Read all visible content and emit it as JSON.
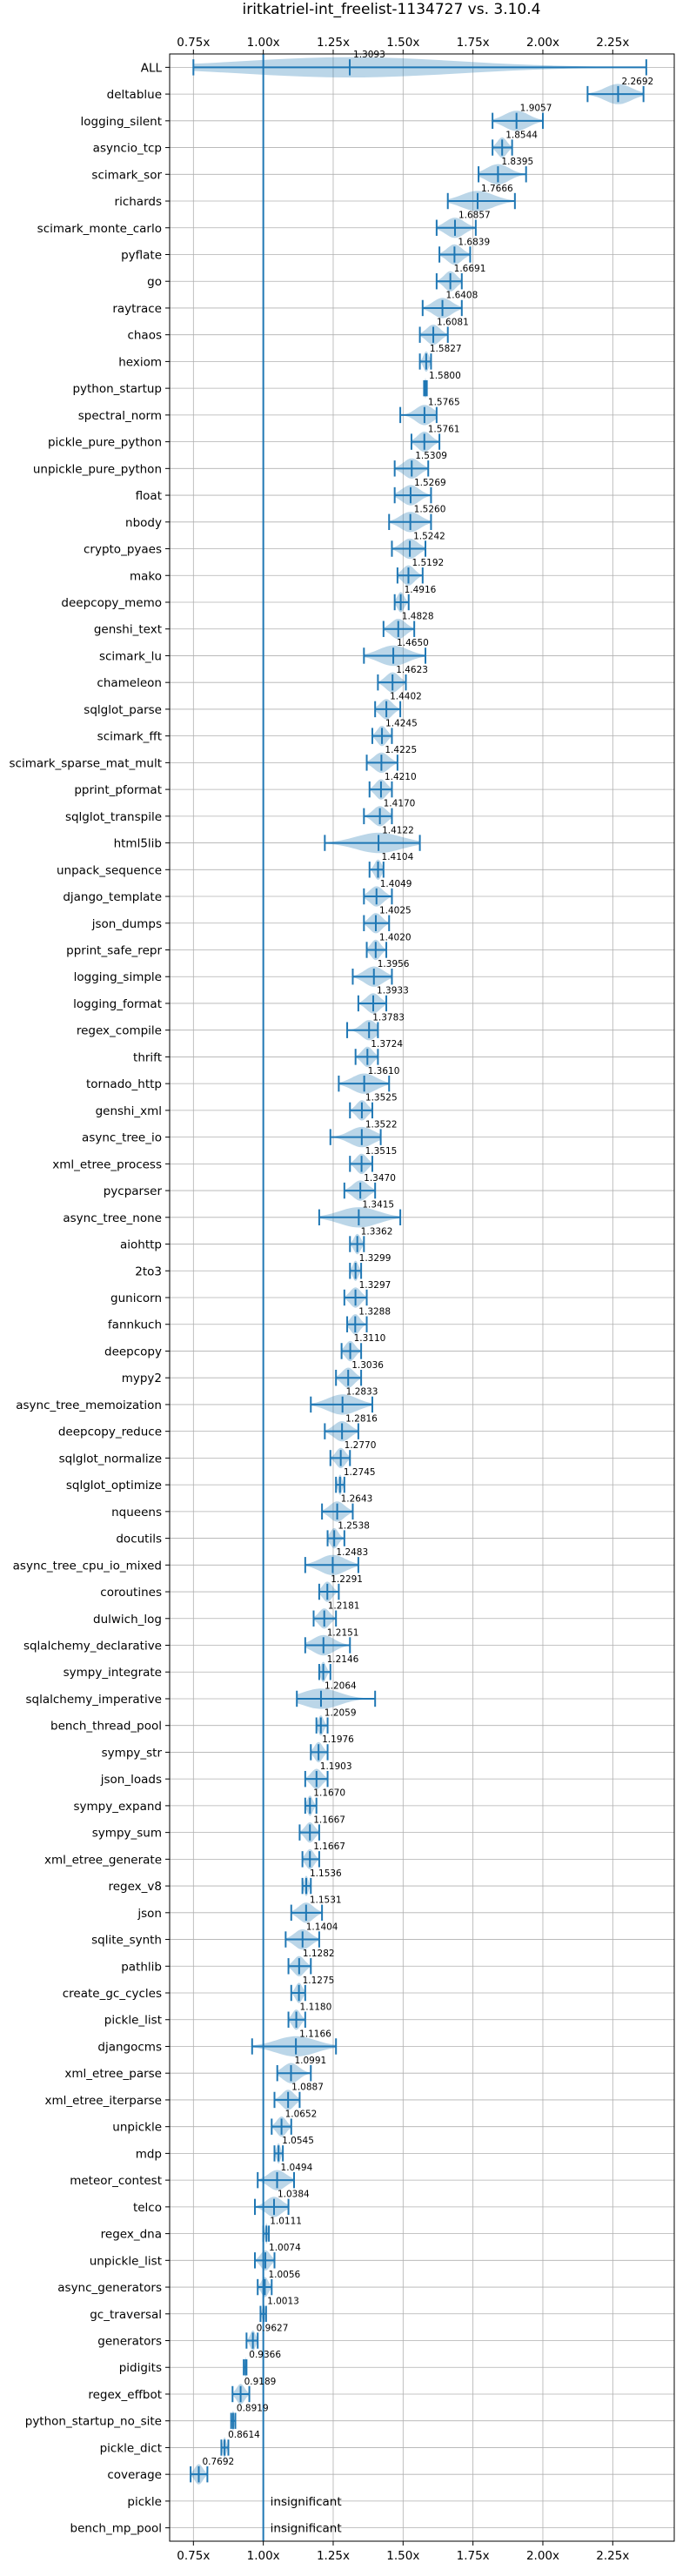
{
  "chart_data": {
    "type": "violin",
    "title": "iritkatriel-int_freelist-1134727 vs. 3.10.4",
    "xlabel": "",
    "ylabel": "",
    "xlim": [
      0.665,
      2.47
    ],
    "xticks": [
      {
        "value": 0.75,
        "label": "0.75x"
      },
      {
        "value": 1.0,
        "label": "1.00x"
      },
      {
        "value": 1.25,
        "label": "1.25x"
      },
      {
        "value": 1.5,
        "label": "1.50x"
      },
      {
        "value": 1.75,
        "label": "1.75x"
      },
      {
        "value": 2.0,
        "label": "2.00x"
      },
      {
        "value": 2.25,
        "label": "2.25x"
      }
    ],
    "reference_line": 1.0,
    "grid": true,
    "insignificant_label": "insignificant",
    "benchmarks": [
      {
        "name": "ALL",
        "label": "1.3093",
        "value": 1.3093,
        "min": 0.75,
        "max": 2.37
      },
      {
        "name": "deltablue",
        "label": "2.2692",
        "value": 2.2692,
        "min": 2.16,
        "max": 2.36
      },
      {
        "name": "logging_silent",
        "label": "1.9057",
        "value": 1.9057,
        "min": 1.82,
        "max": 2.0
      },
      {
        "name": "asyncio_tcp",
        "label": "1.8544",
        "value": 1.8544,
        "min": 1.82,
        "max": 1.89
      },
      {
        "name": "scimark_sor",
        "label": "1.8395",
        "value": 1.8395,
        "min": 1.77,
        "max": 1.94
      },
      {
        "name": "richards",
        "label": "1.7666",
        "value": 1.7666,
        "min": 1.66,
        "max": 1.9
      },
      {
        "name": "scimark_monte_carlo",
        "label": "1.6857",
        "value": 1.6857,
        "min": 1.62,
        "max": 1.76
      },
      {
        "name": "pyflate",
        "label": "1.6839",
        "value": 1.6839,
        "min": 1.63,
        "max": 1.74
      },
      {
        "name": "go",
        "label": "1.6691",
        "value": 1.6691,
        "min": 1.62,
        "max": 1.71
      },
      {
        "name": "raytrace",
        "label": "1.6408",
        "value": 1.6408,
        "min": 1.57,
        "max": 1.71
      },
      {
        "name": "chaos",
        "label": "1.6081",
        "value": 1.6081,
        "min": 1.56,
        "max": 1.66
      },
      {
        "name": "hexiom",
        "label": "1.5827",
        "value": 1.5827,
        "min": 1.56,
        "max": 1.6
      },
      {
        "name": "python_startup",
        "label": "1.5800",
        "value": 1.58,
        "min": 1.575,
        "max": 1.585
      },
      {
        "name": "spectral_norm",
        "label": "1.5765",
        "value": 1.5765,
        "min": 1.49,
        "max": 1.62
      },
      {
        "name": "pickle_pure_python",
        "label": "1.5761",
        "value": 1.5761,
        "min": 1.53,
        "max": 1.63
      },
      {
        "name": "unpickle_pure_python",
        "label": "1.5309",
        "value": 1.5309,
        "min": 1.47,
        "max": 1.59
      },
      {
        "name": "float",
        "label": "1.5269",
        "value": 1.5269,
        "min": 1.47,
        "max": 1.6
      },
      {
        "name": "nbody",
        "label": "1.5260",
        "value": 1.526,
        "min": 1.45,
        "max": 1.6
      },
      {
        "name": "crypto_pyaes",
        "label": "1.5242",
        "value": 1.5242,
        "min": 1.46,
        "max": 1.58
      },
      {
        "name": "mako",
        "label": "1.5192",
        "value": 1.5192,
        "min": 1.48,
        "max": 1.57
      },
      {
        "name": "deepcopy_memo",
        "label": "1.4916",
        "value": 1.4916,
        "min": 1.47,
        "max": 1.52
      },
      {
        "name": "genshi_text",
        "label": "1.4828",
        "value": 1.4828,
        "min": 1.43,
        "max": 1.54
      },
      {
        "name": "scimark_lu",
        "label": "1.4650",
        "value": 1.465,
        "min": 1.36,
        "max": 1.58
      },
      {
        "name": "chameleon",
        "label": "1.4623",
        "value": 1.4623,
        "min": 1.41,
        "max": 1.51
      },
      {
        "name": "sqlglot_parse",
        "label": "1.4402",
        "value": 1.4402,
        "min": 1.4,
        "max": 1.49
      },
      {
        "name": "scimark_fft",
        "label": "1.4245",
        "value": 1.4245,
        "min": 1.39,
        "max": 1.46
      },
      {
        "name": "scimark_sparse_mat_mult",
        "label": "1.4225",
        "value": 1.4225,
        "min": 1.37,
        "max": 1.48
      },
      {
        "name": "pprint_pformat",
        "label": "1.4210",
        "value": 1.421,
        "min": 1.38,
        "max": 1.46
      },
      {
        "name": "sqlglot_transpile",
        "label": "1.4170",
        "value": 1.417,
        "min": 1.36,
        "max": 1.46
      },
      {
        "name": "html5lib",
        "label": "1.4122",
        "value": 1.4122,
        "min": 1.22,
        "max": 1.56
      },
      {
        "name": "unpack_sequence",
        "label": "1.4104",
        "value": 1.4104,
        "min": 1.38,
        "max": 1.43
      },
      {
        "name": "django_template",
        "label": "1.4049",
        "value": 1.4049,
        "min": 1.36,
        "max": 1.46
      },
      {
        "name": "json_dumps",
        "label": "1.4025",
        "value": 1.4025,
        "min": 1.36,
        "max": 1.45
      },
      {
        "name": "pprint_safe_repr",
        "label": "1.4020",
        "value": 1.402,
        "min": 1.37,
        "max": 1.44
      },
      {
        "name": "logging_simple",
        "label": "1.3956",
        "value": 1.3956,
        "min": 1.32,
        "max": 1.46
      },
      {
        "name": "logging_format",
        "label": "1.3933",
        "value": 1.3933,
        "min": 1.34,
        "max": 1.44
      },
      {
        "name": "regex_compile",
        "label": "1.3783",
        "value": 1.3783,
        "min": 1.3,
        "max": 1.41
      },
      {
        "name": "thrift",
        "label": "1.3724",
        "value": 1.3724,
        "min": 1.33,
        "max": 1.41
      },
      {
        "name": "tornado_http",
        "label": "1.3610",
        "value": 1.361,
        "min": 1.27,
        "max": 1.45
      },
      {
        "name": "genshi_xml",
        "label": "1.3525",
        "value": 1.3525,
        "min": 1.31,
        "max": 1.39
      },
      {
        "name": "async_tree_io",
        "label": "1.3522",
        "value": 1.3522,
        "min": 1.24,
        "max": 1.42
      },
      {
        "name": "xml_etree_process",
        "label": "1.3515",
        "value": 1.3515,
        "min": 1.31,
        "max": 1.39
      },
      {
        "name": "pycparser",
        "label": "1.3470",
        "value": 1.347,
        "min": 1.29,
        "max": 1.4
      },
      {
        "name": "async_tree_none",
        "label": "1.3415",
        "value": 1.3415,
        "min": 1.2,
        "max": 1.49
      },
      {
        "name": "aiohttp",
        "label": "1.3362",
        "value": 1.3362,
        "min": 1.31,
        "max": 1.36
      },
      {
        "name": "2to3",
        "label": "1.3299",
        "value": 1.3299,
        "min": 1.31,
        "max": 1.35
      },
      {
        "name": "gunicorn",
        "label": "1.3297",
        "value": 1.3297,
        "min": 1.29,
        "max": 1.37
      },
      {
        "name": "fannkuch",
        "label": "1.3288",
        "value": 1.3288,
        "min": 1.3,
        "max": 1.37
      },
      {
        "name": "deepcopy",
        "label": "1.3110",
        "value": 1.311,
        "min": 1.28,
        "max": 1.35
      },
      {
        "name": "mypy2",
        "label": "1.3036",
        "value": 1.3036,
        "min": 1.26,
        "max": 1.35
      },
      {
        "name": "async_tree_memoization",
        "label": "1.2833",
        "value": 1.2833,
        "min": 1.17,
        "max": 1.39
      },
      {
        "name": "deepcopy_reduce",
        "label": "1.2816",
        "value": 1.2816,
        "min": 1.22,
        "max": 1.34
      },
      {
        "name": "sqlglot_normalize",
        "label": "1.2770",
        "value": 1.277,
        "min": 1.24,
        "max": 1.31
      },
      {
        "name": "sqlglot_optimize",
        "label": "1.2745",
        "value": 1.2745,
        "min": 1.26,
        "max": 1.29
      },
      {
        "name": "nqueens",
        "label": "1.2643",
        "value": 1.2643,
        "min": 1.21,
        "max": 1.32
      },
      {
        "name": "docutils",
        "label": "1.2538",
        "value": 1.2538,
        "min": 1.23,
        "max": 1.29
      },
      {
        "name": "async_tree_cpu_io_mixed",
        "label": "1.2483",
        "value": 1.2483,
        "min": 1.15,
        "max": 1.34
      },
      {
        "name": "coroutines",
        "label": "1.2291",
        "value": 1.2291,
        "min": 1.2,
        "max": 1.27
      },
      {
        "name": "dulwich_log",
        "label": "1.2181",
        "value": 1.2181,
        "min": 1.18,
        "max": 1.26
      },
      {
        "name": "sqlalchemy_declarative",
        "label": "1.2151",
        "value": 1.2151,
        "min": 1.15,
        "max": 1.31
      },
      {
        "name": "sympy_integrate",
        "label": "1.2146",
        "value": 1.2146,
        "min": 1.2,
        "max": 1.24
      },
      {
        "name": "sqlalchemy_imperative",
        "label": "1.2064",
        "value": 1.2064,
        "min": 1.12,
        "max": 1.4
      },
      {
        "name": "bench_thread_pool",
        "label": "1.2059",
        "value": 1.2059,
        "min": 1.19,
        "max": 1.23
      },
      {
        "name": "sympy_str",
        "label": "1.1976",
        "value": 1.1976,
        "min": 1.17,
        "max": 1.23
      },
      {
        "name": "json_loads",
        "label": "1.1903",
        "value": 1.1903,
        "min": 1.15,
        "max": 1.23
      },
      {
        "name": "sympy_expand",
        "label": "1.1670",
        "value": 1.167,
        "min": 1.15,
        "max": 1.19
      },
      {
        "name": "sympy_sum",
        "label": "1.1667",
        "value": 1.1667,
        "min": 1.13,
        "max": 1.2
      },
      {
        "name": "xml_etree_generate",
        "label": "1.1667",
        "value": 1.1667,
        "min": 1.14,
        "max": 1.2
      },
      {
        "name": "regex_v8",
        "label": "1.1536",
        "value": 1.1536,
        "min": 1.14,
        "max": 1.17
      },
      {
        "name": "json",
        "label": "1.1531",
        "value": 1.1531,
        "min": 1.1,
        "max": 1.21
      },
      {
        "name": "sqlite_synth",
        "label": "1.1404",
        "value": 1.1404,
        "min": 1.08,
        "max": 1.2
      },
      {
        "name": "pathlib",
        "label": "1.1282",
        "value": 1.1282,
        "min": 1.09,
        "max": 1.17
      },
      {
        "name": "create_gc_cycles",
        "label": "1.1275",
        "value": 1.1275,
        "min": 1.1,
        "max": 1.15
      },
      {
        "name": "pickle_list",
        "label": "1.1180",
        "value": 1.118,
        "min": 1.09,
        "max": 1.15
      },
      {
        "name": "djangocms",
        "label": "1.1166",
        "value": 1.1166,
        "min": 0.96,
        "max": 1.26
      },
      {
        "name": "xml_etree_parse",
        "label": "1.0991",
        "value": 1.0991,
        "min": 1.05,
        "max": 1.17
      },
      {
        "name": "xml_etree_iterparse",
        "label": "1.0887",
        "value": 1.0887,
        "min": 1.04,
        "max": 1.13
      },
      {
        "name": "unpickle",
        "label": "1.0652",
        "value": 1.0652,
        "min": 1.03,
        "max": 1.1
      },
      {
        "name": "mdp",
        "label": "1.0545",
        "value": 1.0545,
        "min": 1.04,
        "max": 1.07
      },
      {
        "name": "meteor_contest",
        "label": "1.0494",
        "value": 1.0494,
        "min": 0.98,
        "max": 1.11
      },
      {
        "name": "telco",
        "label": "1.0384",
        "value": 1.0384,
        "min": 0.97,
        "max": 1.09
      },
      {
        "name": "regex_dna",
        "label": "1.0111",
        "value": 1.0111,
        "min": 1.0,
        "max": 1.02
      },
      {
        "name": "unpickle_list",
        "label": "1.0074",
        "value": 1.0074,
        "min": 0.97,
        "max": 1.04
      },
      {
        "name": "async_generators",
        "label": "1.0056",
        "value": 1.0056,
        "min": 0.98,
        "max": 1.03
      },
      {
        "name": "gc_traversal",
        "label": "1.0013",
        "value": 1.0013,
        "min": 0.99,
        "max": 1.01
      },
      {
        "name": "generators",
        "label": "0.9627",
        "value": 0.9627,
        "min": 0.94,
        "max": 0.98
      },
      {
        "name": "pidigits",
        "label": "0.9366",
        "value": 0.9366,
        "min": 0.93,
        "max": 0.94
      },
      {
        "name": "regex_effbot",
        "label": "0.9189",
        "value": 0.9189,
        "min": 0.89,
        "max": 0.95
      },
      {
        "name": "python_startup_no_site",
        "label": "0.8919",
        "value": 0.8919,
        "min": 0.885,
        "max": 0.9
      },
      {
        "name": "pickle_dict",
        "label": "0.8614",
        "value": 0.8614,
        "min": 0.85,
        "max": 0.875
      },
      {
        "name": "coverage",
        "label": "0.7692",
        "value": 0.7692,
        "min": 0.74,
        "max": 0.8
      },
      {
        "name": "pickle",
        "label": "insignificant",
        "insignificant": true
      },
      {
        "name": "bench_mp_pool",
        "label": "insignificant",
        "insignificant": true
      }
    ]
  },
  "colors": {
    "series": "#1f77b4",
    "grid": "#b0b0b0"
  }
}
